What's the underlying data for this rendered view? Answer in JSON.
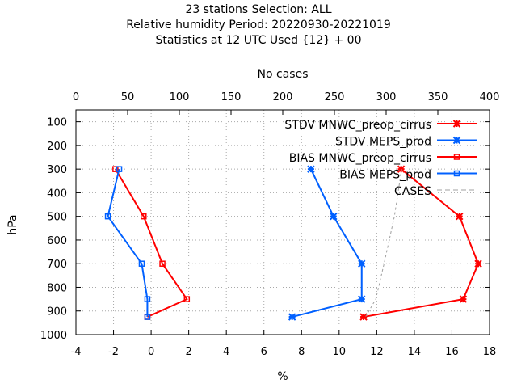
{
  "header": {
    "line1": "23 stations Selection: ALL",
    "line2": "Relative humidity  Period: 20220930-20221019",
    "line3": "Statistics at 12 UTC  Used {12} + 00"
  },
  "chart_data": {
    "type": "line",
    "xlabel": "%",
    "ylabel": "hPa",
    "x2label": "No cases",
    "xlim": [
      -4,
      18
    ],
    "x2lim": [
      0,
      400
    ],
    "ylim": [
      1000,
      50
    ],
    "y_inverted": true,
    "grid": true,
    "legend_position": "top-right",
    "x_ticks": [
      -4,
      -2,
      0,
      2,
      4,
      6,
      8,
      10,
      12,
      14,
      16,
      18
    ],
    "x_tick_labels": [
      "-4",
      "-2",
      "0",
      "2",
      "4",
      "6",
      "8",
      "10",
      "12",
      "14",
      "16",
      "18"
    ],
    "x2_ticks": [
      0,
      50,
      100,
      150,
      200,
      250,
      300,
      350,
      400
    ],
    "x2_tick_labels": [
      "0",
      "50",
      "100",
      "150",
      "200",
      "250",
      "300",
      "350",
      "400"
    ],
    "y_ticks": [
      100,
      200,
      300,
      400,
      500,
      600,
      700,
      800,
      900,
      1000
    ],
    "y_tick_labels": [
      "100",
      "200",
      "300",
      "400",
      "500",
      "600",
      "700",
      "800",
      "900",
      "1000"
    ],
    "series": [
      {
        "name": "STDV MNWC_preop_cirrus",
        "color": "#ff0000",
        "marker": "x",
        "points": [
          [
            13.3,
            300
          ],
          [
            16.4,
            500
          ],
          [
            17.4,
            700
          ],
          [
            16.6,
            850
          ],
          [
            11.3,
            925
          ]
        ]
      },
      {
        "name": "STDV MEPS_prod",
        "color": "#0060ff",
        "marker": "x",
        "points": [
          [
            8.5,
            300
          ],
          [
            9.7,
            500
          ],
          [
            11.2,
            700
          ],
          [
            11.2,
            850
          ],
          [
            7.5,
            925
          ]
        ]
      },
      {
        "name": "BIAS MNWC_preop_cirrus",
        "color": "#ff0000",
        "marker": "square",
        "points": [
          [
            -1.9,
            300
          ],
          [
            -0.4,
            500
          ],
          [
            0.6,
            700
          ],
          [
            1.9,
            850
          ],
          [
            -0.2,
            925
          ]
        ]
      },
      {
        "name": "BIAS MEPS_prod",
        "color": "#0060ff",
        "marker": "square",
        "points": [
          [
            -1.7,
            300
          ],
          [
            -2.3,
            500
          ],
          [
            -0.5,
            700
          ],
          [
            -0.2,
            850
          ],
          [
            -0.2,
            925
          ]
        ]
      },
      {
        "name": "CASES",
        "color": "#a0a0a0",
        "marker": "none",
        "dashed": true,
        "axis": "x2",
        "points": [
          [
            315,
            300
          ],
          [
            308,
            500
          ],
          [
            298,
            700
          ],
          [
            290,
            850
          ],
          [
            280,
            925
          ]
        ]
      }
    ]
  }
}
